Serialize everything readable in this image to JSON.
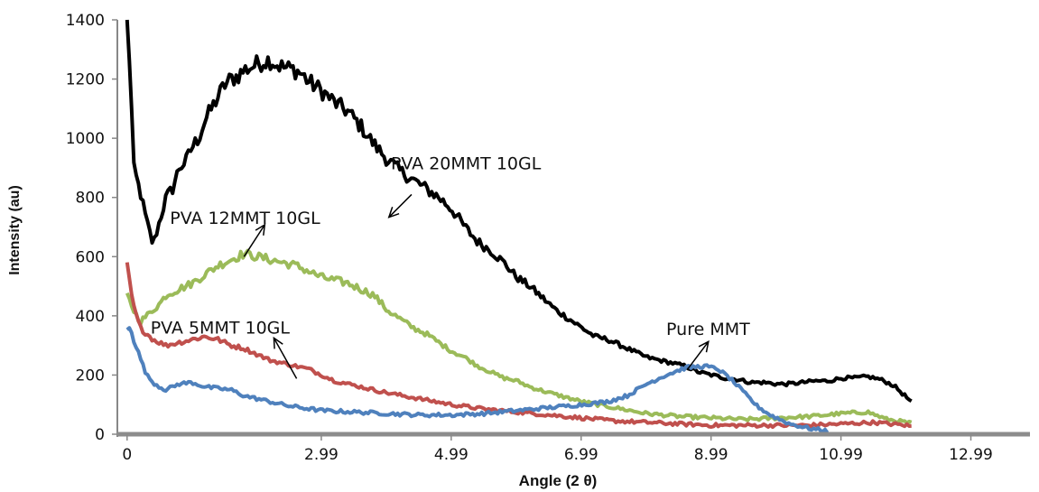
{
  "chart_data": {
    "type": "line",
    "xlabel": "Angle  (2 θ)",
    "ylabel": "Intensity (au)",
    "xlim": [
      -0.15,
      13.9
    ],
    "ylim": [
      0,
      1400
    ],
    "x_ticks": [
      "0",
      "2.99",
      "4.99",
      "6.99",
      "8.99",
      "10.99",
      "12.99"
    ],
    "x_tick_values": [
      0,
      2.99,
      4.99,
      6.99,
      8.99,
      10.99,
      12.99
    ],
    "y_ticks": [
      "0",
      "200",
      "400",
      "600",
      "800",
      "1000",
      "1200",
      "1400"
    ],
    "y_tick_values": [
      0,
      200,
      400,
      600,
      800,
      1000,
      1200,
      1400
    ],
    "grid": false,
    "legend": "none",
    "series": [
      {
        "color": "#000000",
        "x": [
          0,
          0.05,
          0.1,
          0.2,
          0.3,
          0.4,
          0.5,
          0.6,
          0.7,
          0.8,
          0.9,
          1.0,
          1.1,
          1.2,
          1.3,
          1.4,
          1.5,
          1.6,
          1.7,
          1.8,
          1.9,
          2.0,
          2.1,
          2.2,
          2.3,
          2.4,
          2.5,
          2.6,
          2.7,
          2.8,
          2.9,
          3.0,
          3.2,
          3.4,
          3.6,
          3.8,
          4.0,
          4.2,
          4.4,
          4.6,
          4.8,
          5.0,
          5.2,
          5.4,
          5.6,
          5.8,
          6.0,
          6.2,
          6.4,
          6.6,
          6.8,
          7.0,
          7.2,
          7.4,
          7.6,
          7.8,
          8.0,
          8.2,
          8.4,
          8.6,
          8.8,
          9.0,
          9.2,
          9.4,
          9.6,
          9.8,
          10.0,
          10.2,
          10.4,
          10.6,
          10.8,
          11.0,
          11.2,
          11.4,
          11.6,
          11.8,
          12.0,
          12.1
        ],
        "y": [
          1400,
          1220,
          900,
          820,
          720,
          640,
          720,
          800,
          830,
          900,
          920,
          970,
          1000,
          1060,
          1100,
          1140,
          1180,
          1200,
          1210,
          1230,
          1240,
          1250,
          1260,
          1265,
          1250,
          1240,
          1235,
          1230,
          1215,
          1190,
          1175,
          1160,
          1120,
          1090,
          1040,
          980,
          930,
          890,
          860,
          830,
          800,
          760,
          700,
          650,
          620,
          580,
          530,
          500,
          460,
          420,
          390,
          360,
          330,
          320,
          300,
          280,
          260,
          250,
          240,
          230,
          210,
          200,
          190,
          185,
          175,
          175,
          170,
          170,
          175,
          180,
          180,
          190,
          190,
          195,
          185,
          165,
          125,
          100
        ]
      },
      {
        "color": "#9BBB59",
        "x": [
          0,
          0.1,
          0.2,
          0.3,
          0.4,
          0.5,
          0.6,
          0.8,
          1.0,
          1.2,
          1.4,
          1.6,
          1.8,
          2.0,
          2.2,
          2.4,
          2.6,
          2.8,
          3.0,
          3.2,
          3.4,
          3.6,
          3.8,
          4.0,
          4.2,
          4.4,
          4.6,
          4.8,
          5.0,
          5.2,
          5.4,
          5.6,
          5.8,
          6.0,
          6.2,
          6.5,
          7.0,
          7.5,
          8.0,
          8.5,
          9.0,
          9.5,
          10.0,
          10.5,
          11.0,
          11.4,
          11.7,
          12.0,
          12.1
        ],
        "y": [
          470,
          420,
          380,
          400,
          420,
          440,
          470,
          490,
          510,
          540,
          570,
          590,
          610,
          600,
          590,
          580,
          570,
          550,
          530,
          520,
          510,
          490,
          470,
          420,
          390,
          360,
          340,
          310,
          280,
          260,
          230,
          210,
          190,
          180,
          160,
          140,
          110,
          90,
          70,
          60,
          55,
          50,
          55,
          60,
          70,
          75,
          50,
          40,
          35
        ]
      },
      {
        "color": "#C0504D",
        "x": [
          0,
          0.05,
          0.1,
          0.2,
          0.3,
          0.4,
          0.6,
          0.8,
          1.0,
          1.2,
          1.4,
          1.6,
          1.8,
          2.0,
          2.2,
          2.4,
          2.6,
          2.8,
          3.0,
          3.2,
          3.4,
          3.6,
          3.8,
          4.0,
          4.5,
          5.0,
          5.5,
          6.0,
          6.5,
          7.0,
          7.5,
          8.0,
          8.5,
          9.0,
          9.5,
          10.0,
          10.5,
          11.0,
          11.5,
          12.0,
          12.1
        ],
        "y": [
          570,
          500,
          430,
          360,
          340,
          320,
          300,
          310,
          320,
          330,
          320,
          300,
          290,
          270,
          250,
          240,
          230,
          220,
          200,
          180,
          170,
          160,
          150,
          140,
          120,
          100,
          85,
          75,
          65,
          55,
          45,
          40,
          35,
          30,
          30,
          30,
          30,
          35,
          40,
          30,
          25
        ]
      },
      {
        "color": "#4F81BD",
        "x": [
          0,
          0.05,
          0.1,
          0.2,
          0.3,
          0.4,
          0.5,
          0.6,
          0.7,
          0.8,
          1.0,
          1.2,
          1.4,
          1.6,
          1.8,
          2.0,
          2.2,
          2.5,
          3.0,
          3.5,
          4.0,
          4.5,
          5.0,
          5.5,
          6.0,
          6.5,
          7.0,
          7.4,
          7.7,
          8.0,
          8.3,
          8.6,
          8.9,
          9.1,
          9.3,
          9.5,
          9.7,
          9.9,
          10.2,
          10.5,
          10.8
        ],
        "y": [
          350,
          370,
          320,
          260,
          200,
          175,
          160,
          150,
          160,
          170,
          175,
          160,
          155,
          150,
          130,
          120,
          110,
          95,
          80,
          75,
          70,
          65,
          65,
          70,
          80,
          90,
          100,
          110,
          130,
          170,
          200,
          225,
          230,
          220,
          185,
          140,
          95,
          65,
          35,
          20,
          10
        ]
      }
    ],
    "annotations": [
      {
        "text": "PVA 20MMT  10GL",
        "x": 4.06,
        "y": 895,
        "arrow_from": [
          4.38,
          810
        ],
        "arrow_to": [
          4.03,
          733
        ]
      },
      {
        "text": "PVA 12MMT  10GL",
        "x": 0.66,
        "y": 710,
        "arrow_from": [
          1.8,
          600
        ],
        "arrow_to": [
          2.12,
          708
        ]
      },
      {
        "text": "PVA 5MMT  10GL",
        "x": 0.36,
        "y": 340,
        "arrow_from": [
          2.61,
          188
        ],
        "arrow_to": [
          2.26,
          325
        ]
      },
      {
        "text": "Pure MMT",
        "x": 8.3,
        "y": 335,
        "arrow_from": [
          8.62,
          217
        ],
        "arrow_to": [
          8.95,
          313
        ]
      }
    ]
  }
}
